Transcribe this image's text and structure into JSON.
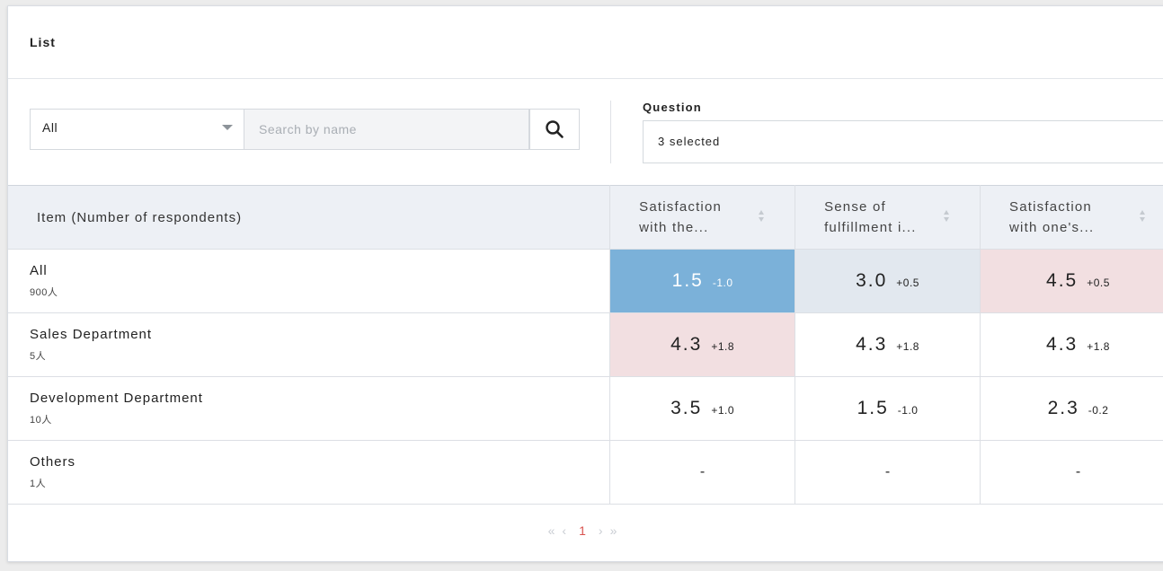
{
  "panel": {
    "title": "List"
  },
  "filters": {
    "department_select_value": "All",
    "search_placeholder": "Search by name",
    "question_label": "Question",
    "question_select_value": "3 selected"
  },
  "table": {
    "item_header": "Item (Number of respondents)",
    "questions": [
      {
        "label": "Satisfaction with the..."
      },
      {
        "label": "Sense of fulfillment i..."
      },
      {
        "label": "Satisfaction with one's..."
      }
    ],
    "rows": [
      {
        "name": "All",
        "count": "900人",
        "cells": [
          {
            "score": "1.5",
            "diff": "-1.0",
            "bg": "blue"
          },
          {
            "score": "3.0",
            "diff": "+0.5",
            "bg": "gray"
          },
          {
            "score": "4.5",
            "diff": "+0.5",
            "bg": "pink"
          }
        ]
      },
      {
        "name": "Sales Department",
        "count": "5人",
        "cells": [
          {
            "score": "4.3",
            "diff": "+1.8",
            "bg": "pink"
          },
          {
            "score": "4.3",
            "diff": "+1.8",
            "bg": "none"
          },
          {
            "score": "4.3",
            "diff": "+1.8",
            "bg": "none"
          }
        ]
      },
      {
        "name": "Development Department",
        "count": "10人",
        "cells": [
          {
            "score": "3.5",
            "diff": "+1.0",
            "bg": "none"
          },
          {
            "score": "1.5",
            "diff": "-1.0",
            "bg": "none"
          },
          {
            "score": "2.3",
            "diff": "-0.2",
            "bg": "none"
          }
        ]
      },
      {
        "name": "Others",
        "count": "1人",
        "cells": [
          {
            "blank": "-"
          },
          {
            "blank": "-"
          },
          {
            "blank": "-"
          }
        ]
      }
    ]
  },
  "pagination": {
    "first": "«",
    "prev": "‹",
    "current": "1",
    "next": "›",
    "last": "»"
  },
  "colors": {
    "cell_low": "#7bb1d9",
    "cell_mid": "#e2e8ef",
    "cell_high": "#f2dfe1",
    "current_page": "#d9534f"
  },
  "icons": {
    "search": "search-icon",
    "dropdown": "caret-down-icon",
    "sort": "sort-icon"
  }
}
